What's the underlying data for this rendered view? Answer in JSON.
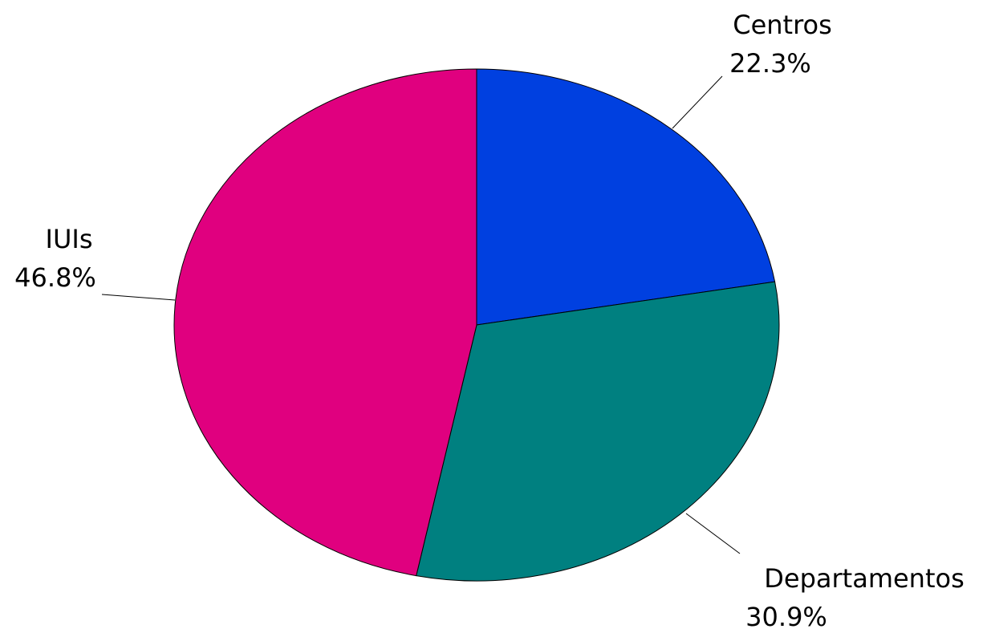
{
  "chart_data": {
    "type": "pie",
    "title": "",
    "slices": [
      {
        "label": "Centros",
        "value": 22.3,
        "value_label": "22.3%",
        "color": "#0040E0"
      },
      {
        "label": "Departamentos",
        "value": 30.9,
        "value_label": "30.9%",
        "color": "#008080"
      },
      {
        "label": "IUIs",
        "value": 46.8,
        "value_label": "46.8%",
        "color": "#E0007F"
      }
    ],
    "start_angle": "12 o'clock",
    "direction": "clockwise",
    "legend": "none",
    "labels": "outside-with-leader-lines"
  }
}
